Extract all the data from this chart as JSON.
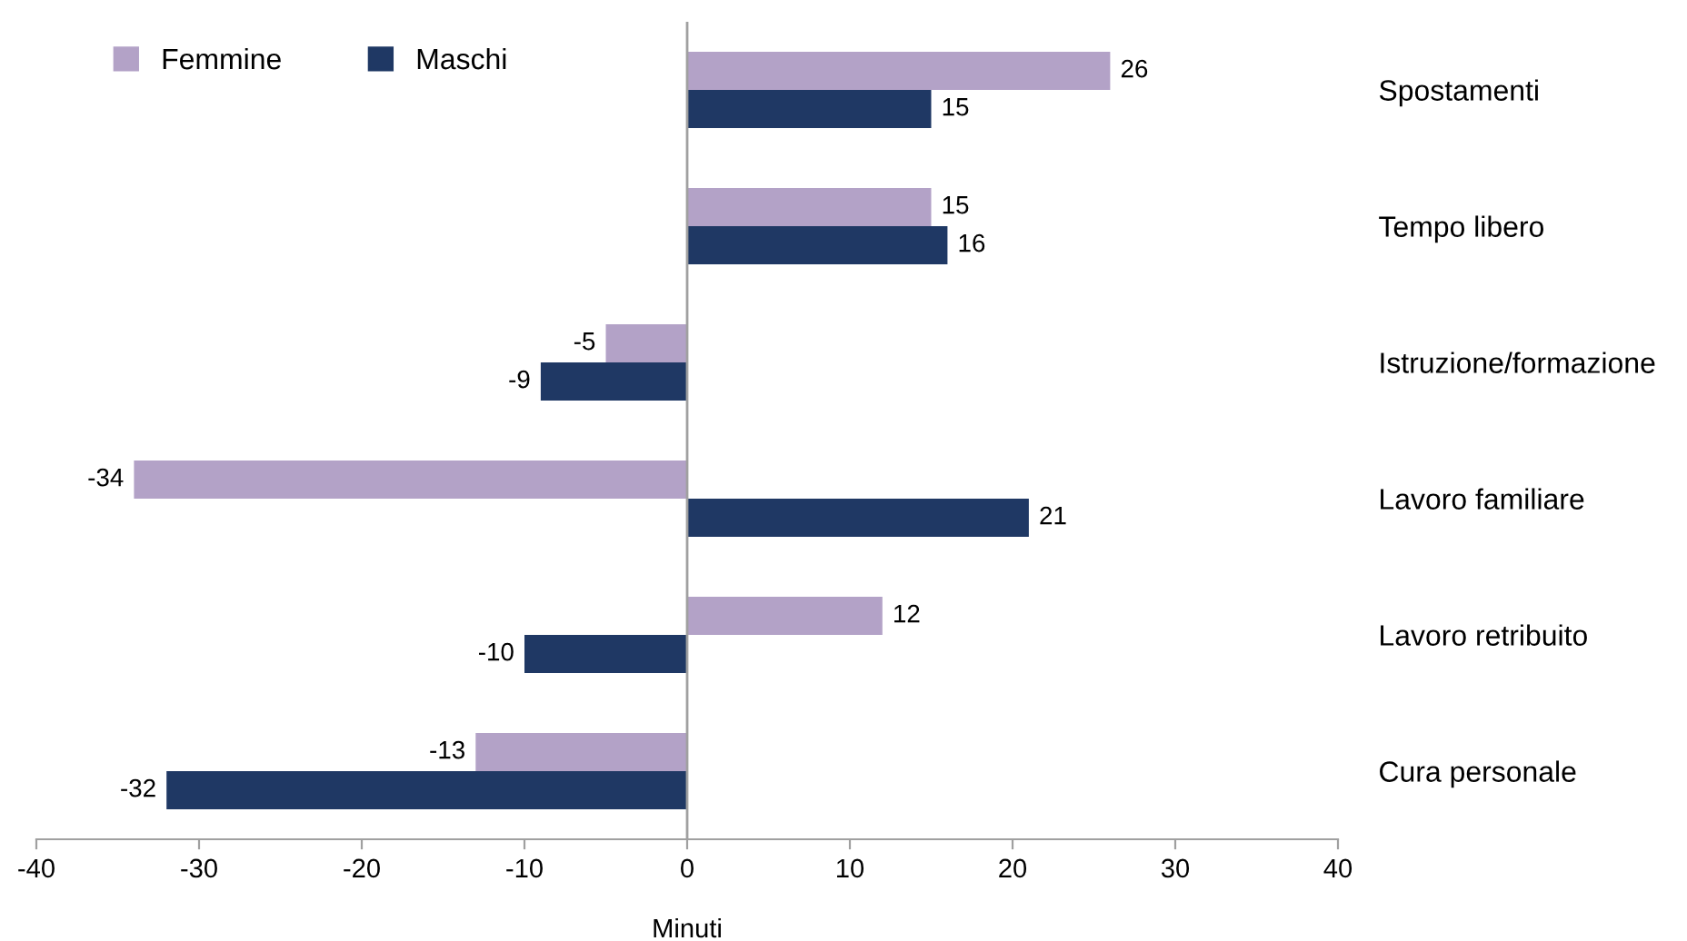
{
  "chart_data": {
    "type": "bar",
    "orientation": "horizontal",
    "xlabel": "Minuti",
    "categories": [
      "Spostamenti",
      "Tempo libero",
      "Istruzione/formazione",
      "Lavoro familiare",
      "Lavoro retribuito",
      "Cura personale"
    ],
    "series": [
      {
        "name": "Femmine",
        "color": "#b3a2c7",
        "values": [
          26,
          15,
          -5,
          -34,
          12,
          -13
        ]
      },
      {
        "name": "Maschi",
        "color": "#1f3864",
        "values": [
          15,
          16,
          -9,
          21,
          -10,
          -32
        ]
      }
    ],
    "xlim": [
      -40,
      40
    ],
    "xticks": [
      -40,
      -30,
      -20,
      -10,
      0,
      10,
      20,
      30,
      40
    ],
    "ref_lines": [
      {
        "axis": "x",
        "value": 0,
        "color": "#a0a0a0"
      }
    ],
    "legend": "top left",
    "data_labels": true
  }
}
